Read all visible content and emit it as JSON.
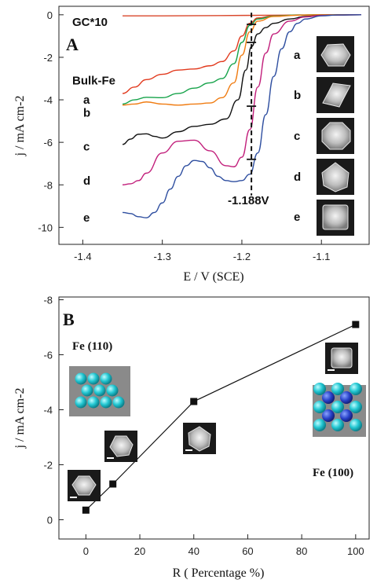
{
  "chart_data": [
    {
      "panel": "A",
      "type": "line",
      "xlabel": "E / V (SCE)",
      "ylabel": "j / mA cm-2",
      "xlim": [
        -1.43,
        -1.04
      ],
      "ylim": [
        -10.8,
        0.4
      ],
      "x_ticks": [
        -1.4,
        -1.3,
        -1.2,
        -1.1
      ],
      "y_ticks": [
        0,
        -2,
        -4,
        -6,
        -8,
        -10
      ],
      "series": [
        {
          "name": "GC*10",
          "color": "#d9472b",
          "x": [
            -1.35,
            -1.3,
            -1.25,
            -1.2,
            -1.15,
            -1.1,
            -1.05
          ],
          "y": [
            -0.05,
            -0.05,
            -0.04,
            -0.03,
            -0.02,
            -0.01,
            0
          ]
        },
        {
          "name": "Bulk-Fe",
          "color": "#e23a1e",
          "x": [
            -1.35,
            -1.335,
            -1.32,
            -1.3,
            -1.28,
            -1.26,
            -1.24,
            -1.225,
            -1.21,
            -1.2,
            -1.19,
            -1.18,
            -1.16,
            -1.13,
            -1.1,
            -1.05
          ],
          "y": [
            -3.7,
            -3.4,
            -3.05,
            -2.8,
            -2.6,
            -2.55,
            -2.4,
            -2.2,
            -1.7,
            -1.0,
            -0.4,
            -0.15,
            -0.05,
            -0.01,
            0,
            0
          ]
        },
        {
          "name": "a",
          "color": "#16a34a",
          "x": [
            -1.35,
            -1.335,
            -1.32,
            -1.3,
            -1.28,
            -1.26,
            -1.24,
            -1.225,
            -1.21,
            -1.2,
            -1.19,
            -1.18,
            -1.16,
            -1.13,
            -1.1,
            -1.05
          ],
          "y": [
            -4.2,
            -4.0,
            -3.88,
            -3.9,
            -3.7,
            -3.45,
            -3.2,
            -3.0,
            -2.3,
            -1.3,
            -0.5,
            -0.2,
            -0.06,
            -0.01,
            0,
            0
          ]
        },
        {
          "name": "b",
          "color": "#f07c12",
          "x": [
            -1.35,
            -1.335,
            -1.32,
            -1.3,
            -1.28,
            -1.26,
            -1.24,
            -1.225,
            -1.21,
            -1.2,
            -1.19,
            -1.18,
            -1.16,
            -1.13,
            -1.1,
            -1.05
          ],
          "y": [
            -4.25,
            -4.2,
            -4.1,
            -4.2,
            -4.25,
            -4.2,
            -4.15,
            -3.9,
            -3.2,
            -1.9,
            -0.8,
            -0.3,
            -0.08,
            -0.02,
            0,
            0
          ]
        },
        {
          "name": "c",
          "color": "#111111",
          "x": [
            -1.35,
            -1.34,
            -1.33,
            -1.32,
            -1.31,
            -1.3,
            -1.28,
            -1.26,
            -1.24,
            -1.22,
            -1.205,
            -1.195,
            -1.188,
            -1.18,
            -1.17,
            -1.16,
            -1.14,
            -1.12,
            -1.1,
            -1.08,
            -1.05
          ],
          "y": [
            -6.1,
            -5.85,
            -5.62,
            -5.6,
            -5.72,
            -5.8,
            -5.5,
            -5.25,
            -5.15,
            -4.9,
            -4.0,
            -2.6,
            -1.5,
            -0.9,
            -0.6,
            -0.4,
            -0.2,
            -0.08,
            -0.03,
            -0.01,
            0
          ]
        },
        {
          "name": "d",
          "color": "#c2207c",
          "x": [
            -1.35,
            -1.34,
            -1.33,
            -1.32,
            -1.3,
            -1.28,
            -1.26,
            -1.24,
            -1.22,
            -1.21,
            -1.2,
            -1.19,
            -1.18,
            -1.17,
            -1.16,
            -1.14,
            -1.12,
            -1.1,
            -1.08,
            -1.05
          ],
          "y": [
            -8.0,
            -7.95,
            -7.8,
            -7.45,
            -6.5,
            -5.95,
            -5.9,
            -6.4,
            -7.1,
            -7.15,
            -6.7,
            -5.4,
            -3.4,
            -1.8,
            -0.9,
            -0.3,
            -0.1,
            -0.03,
            -0.01,
            0
          ]
        },
        {
          "name": "e",
          "color": "#2f4fa0",
          "x": [
            -1.35,
            -1.34,
            -1.33,
            -1.32,
            -1.31,
            -1.3,
            -1.29,
            -1.28,
            -1.27,
            -1.26,
            -1.25,
            -1.24,
            -1.23,
            -1.22,
            -1.21,
            -1.2,
            -1.19,
            -1.18,
            -1.17,
            -1.16,
            -1.15,
            -1.14,
            -1.13,
            -1.12,
            -1.1,
            -1.08,
            -1.05
          ],
          "y": [
            -9.3,
            -9.35,
            -9.5,
            -9.55,
            -9.3,
            -8.85,
            -8.2,
            -7.6,
            -7.1,
            -6.85,
            -6.9,
            -7.2,
            -7.6,
            -7.8,
            -7.85,
            -7.8,
            -7.5,
            -6.5,
            -4.7,
            -2.9,
            -1.6,
            -0.8,
            -0.4,
            -0.2,
            -0.05,
            -0.01,
            0
          ]
        }
      ],
      "annotations": {
        "line_potential": -1.188,
        "line_label": "-1.188V",
        "tick_marks_y": [
          -0.45,
          -1.3,
          -4.3,
          -6.8
        ],
        "curve_labels": [
          {
            "text": "Bulk-Fe",
            "y": -3.1
          },
          {
            "text": "a",
            "y": -4.0
          },
          {
            "text": "b",
            "y": -4.6
          },
          {
            "text": "c",
            "y": -6.2
          },
          {
            "text": "d",
            "y": -7.8
          },
          {
            "text": "e",
            "y": -9.55
          }
        ],
        "inset_labels": [
          "a",
          "b",
          "c",
          "d",
          "e"
        ]
      }
    },
    {
      "panel": "B",
      "type": "scatter",
      "xlabel": "R ( Percentage %)",
      "ylabel": "j / mA cm-2",
      "xlim": [
        -10,
        105
      ],
      "ylim": [
        0.7,
        -8.1
      ],
      "x_ticks": [
        0,
        20,
        40,
        60,
        80,
        100
      ],
      "y_ticks": [
        0,
        -2,
        -4,
        -6,
        -8
      ],
      "points": [
        {
          "x": 0,
          "y": -0.35
        },
        {
          "x": 10,
          "y": -1.3
        },
        {
          "x": 40,
          "y": -4.3
        },
        {
          "x": 100,
          "y": -7.1
        }
      ],
      "annotations": {
        "fe110_label": "Fe (110)",
        "fe100_label": "Fe (100)"
      }
    }
  ],
  "panel_labels": {
    "a": "A",
    "b": "B"
  },
  "gc_label": "GC*10"
}
